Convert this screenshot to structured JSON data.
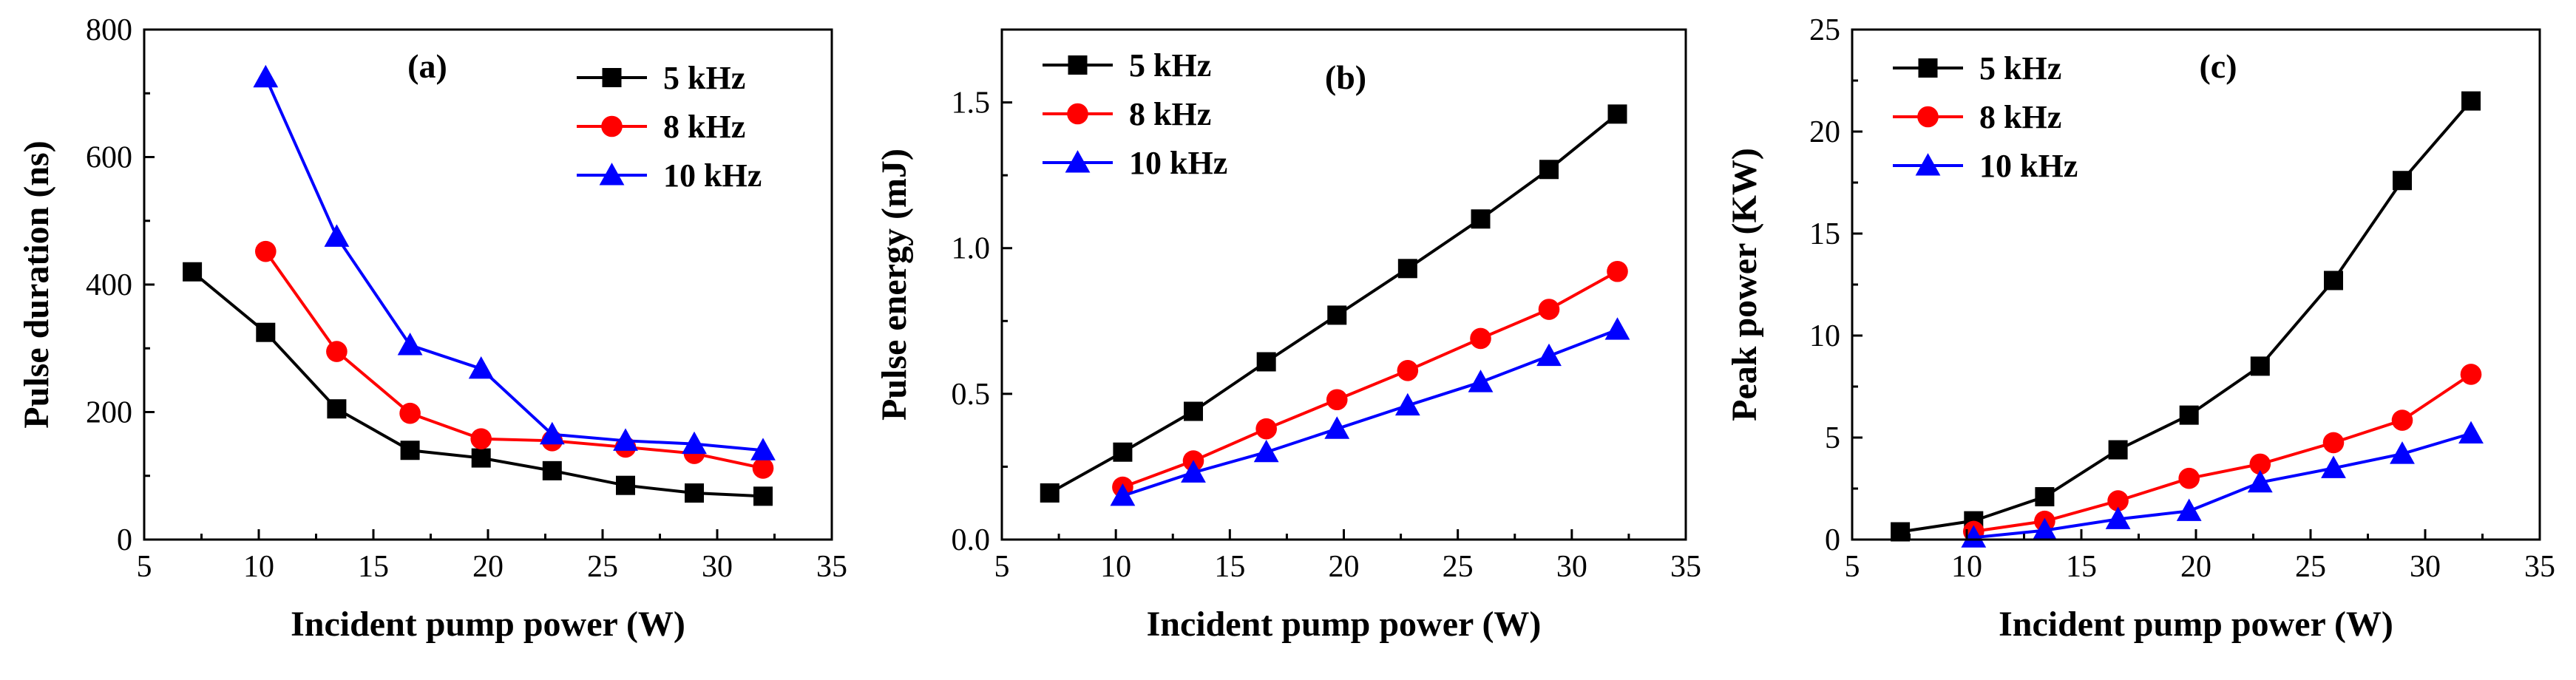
{
  "chart_data": [
    {
      "type": "line",
      "panel_label": "(a)",
      "xlabel": "Incident pump power (W)",
      "ylabel": "Pulse duration (ns)",
      "xlim": [
        5,
        35
      ],
      "ylim": [
        0,
        800
      ],
      "xticks": [
        5,
        10,
        15,
        20,
        25,
        30,
        35
      ],
      "yticks": [
        0,
        200,
        400,
        600,
        800
      ],
      "grid": false,
      "legend_position": "top-right",
      "series": [
        {
          "name": "5 kHz",
          "color": "#000000",
          "marker": "square",
          "x": [
            7.1,
            10.3,
            13.4,
            16.6,
            19.7,
            22.8,
            26,
            29,
            32
          ],
          "y": [
            420,
            325,
            205,
            140,
            128,
            108,
            85,
            73,
            68
          ]
        },
        {
          "name": "8 kHz",
          "color": "#ff0000",
          "marker": "circle",
          "x": [
            10.3,
            13.4,
            16.6,
            19.7,
            22.8,
            26,
            29,
            32
          ],
          "y": [
            452,
            295,
            198,
            158,
            155,
            145,
            135,
            112
          ]
        },
        {
          "name": "10 kHz",
          "color": "#0000ff",
          "marker": "triangle",
          "x": [
            10.3,
            13.4,
            16.6,
            19.7,
            22.8,
            26,
            29,
            32
          ],
          "y": [
            725,
            475,
            305,
            268,
            165,
            155,
            150,
            140
          ]
        }
      ]
    },
    {
      "type": "line",
      "panel_label": "(b)",
      "xlabel": "Incident pump power (W)",
      "ylabel": "Pulse energy (mJ)",
      "xlim": [
        5,
        35
      ],
      "ylim": [
        0,
        1.75
      ],
      "xticks": [
        5,
        10,
        15,
        20,
        25,
        30,
        35
      ],
      "yticks": [
        0.0,
        0.5,
        1.0,
        1.5
      ],
      "ytick_labels": [
        "0.0",
        "0.5",
        "1.0",
        "1.5"
      ],
      "grid": false,
      "legend_position": "top-left",
      "series": [
        {
          "name": "5 kHz",
          "color": "#000000",
          "marker": "square",
          "x": [
            7.1,
            10.3,
            13.4,
            16.6,
            19.7,
            22.8,
            26,
            29,
            32
          ],
          "y": [
            0.16,
            0.3,
            0.44,
            0.61,
            0.77,
            0.93,
            1.1,
            1.27,
            1.46
          ]
        },
        {
          "name": "8 kHz",
          "color": "#ff0000",
          "marker": "circle",
          "x": [
            10.3,
            13.4,
            16.6,
            19.7,
            22.8,
            26,
            29,
            32
          ],
          "y": [
            0.18,
            0.27,
            0.38,
            0.48,
            0.58,
            0.69,
            0.79,
            0.92
          ]
        },
        {
          "name": "10 kHz",
          "color": "#0000ff",
          "marker": "triangle",
          "x": [
            10.3,
            13.4,
            16.6,
            19.7,
            22.8,
            26,
            29,
            32
          ],
          "y": [
            0.15,
            0.23,
            0.3,
            0.38,
            0.46,
            0.54,
            0.63,
            0.72
          ]
        }
      ]
    },
    {
      "type": "line",
      "panel_label": "(c)",
      "xlabel": "Incident pump power (W)",
      "ylabel": "Peak power (KW)",
      "xlim": [
        5,
        35
      ],
      "ylim": [
        0,
        25
      ],
      "xticks": [
        5,
        10,
        15,
        20,
        25,
        30,
        35
      ],
      "yticks": [
        0,
        5,
        10,
        15,
        20,
        25
      ],
      "grid": false,
      "legend_position": "top-left",
      "series": [
        {
          "name": "5 kHz",
          "color": "#000000",
          "marker": "square",
          "x": [
            7.1,
            10.3,
            13.4,
            16.6,
            19.7,
            22.8,
            26,
            29,
            32
          ],
          "y": [
            0.38,
            0.92,
            2.1,
            4.4,
            6.1,
            8.5,
            12.7,
            17.6,
            21.5
          ]
        },
        {
          "name": "8 kHz",
          "color": "#ff0000",
          "marker": "circle",
          "x": [
            10.3,
            13.4,
            16.6,
            19.7,
            22.8,
            26,
            29,
            32
          ],
          "y": [
            0.4,
            0.9,
            1.9,
            3.0,
            3.7,
            4.75,
            5.85,
            8.1
          ]
        },
        {
          "name": "10 kHz",
          "color": "#0000ff",
          "marker": "triangle",
          "x": [
            10.3,
            13.4,
            16.6,
            19.7,
            22.8,
            26,
            29,
            32
          ],
          "y": [
            0.1,
            0.45,
            1.0,
            1.4,
            2.8,
            3.5,
            4.2,
            5.2
          ]
        }
      ]
    }
  ]
}
